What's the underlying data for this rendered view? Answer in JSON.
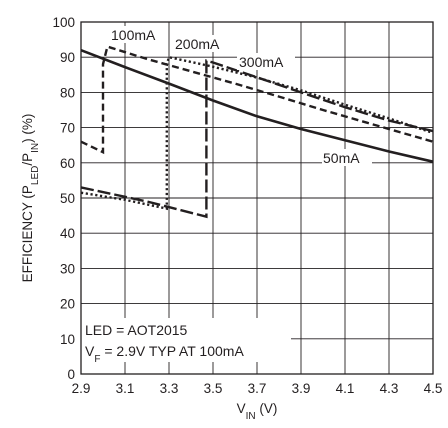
{
  "chart_data": {
    "type": "line",
    "xlabel": {
      "main": "V",
      "sub": "IN",
      "post": " (V)"
    },
    "ylabel": {
      "p1": "EFFICIENCY (P",
      "s1": "LED",
      "p2": "/P",
      "s2": "IN",
      "p3": ") (%)"
    },
    "xlim": [
      2.9,
      4.5
    ],
    "ylim": [
      0,
      100
    ],
    "x_ticks": [
      "2.9",
      "3.1",
      "3.3",
      "3.5",
      "3.7",
      "3.9",
      "4.1",
      "4.3",
      "4.5"
    ],
    "y_ticks": [
      "0",
      "10",
      "20",
      "30",
      "40",
      "50",
      "60",
      "70",
      "80",
      "90",
      "100"
    ],
    "grid": true,
    "annotations": {
      "led": "LED = AOT2015",
      "vf_main": "V",
      "vf_sub": "F",
      "vf_rest": " = 2.9V TYP AT 100mA"
    },
    "series": [
      {
        "name": "50mA",
        "color": "#231f20",
        "style": "solid",
        "x": [
          2.9,
          3.1,
          3.3,
          3.5,
          3.7,
          3.9,
          4.1,
          4.3,
          4.5
        ],
        "y": [
          92,
          87.2,
          82.5,
          77.7,
          73.2,
          69.6,
          66.4,
          63.2,
          60.3
        ]
      },
      {
        "name": "100mA",
        "color": "#231f20",
        "style": "dashed",
        "x": [
          2.9,
          3.0,
          3.0,
          3.02,
          3.2,
          3.4,
          3.6,
          3.8,
          4.0,
          4.2,
          4.5
        ],
        "y": [
          66,
          63,
          88,
          93,
          89.5,
          86,
          82.5,
          78.8,
          75,
          71.4,
          66
        ]
      },
      {
        "name": "200mA",
        "color": "#231f20",
        "style": "dotted",
        "x": [
          2.9,
          3.1,
          3.29,
          3.29,
          3.3,
          3.5,
          3.7,
          3.9,
          4.1,
          4.3,
          4.5
        ],
        "y": [
          51.5,
          49.5,
          47,
          88,
          90,
          87.3,
          84.2,
          80.6,
          76.5,
          72.6,
          68.5
        ]
      },
      {
        "name": "300mA",
        "color": "#231f20",
        "style": "longdash",
        "x": [
          2.9,
          3.2,
          3.47,
          3.47,
          3.5,
          3.7,
          3.9,
          4.1,
          4.3,
          4.5
        ],
        "y": [
          53,
          49,
          44.7,
          89,
          88.5,
          84.3,
          80,
          75.8,
          72,
          69
        ]
      }
    ],
    "series_labels": [
      "100mA",
      "200mA",
      "300mA",
      "50mA"
    ]
  }
}
